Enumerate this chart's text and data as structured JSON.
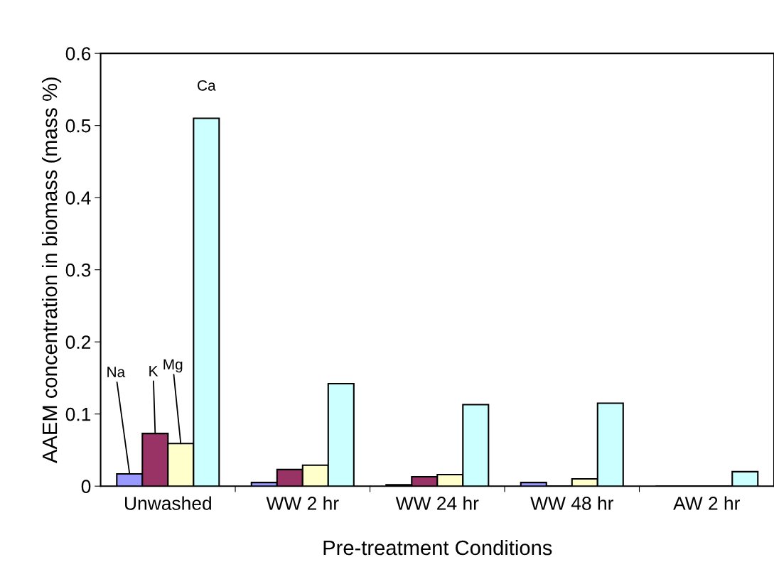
{
  "chart_data": {
    "type": "bar",
    "xlabel": "Pre-treatment Conditions",
    "ylabel": "AAEM concentration in biomass (mass %)",
    "categories": [
      "Unwashed",
      "WW 2 hr",
      "WW 24 hr",
      "WW 48 hr",
      "AW 2 hr"
    ],
    "series": [
      {
        "name": "Na",
        "color": "#9999ff",
        "values": [
          0.017,
          0.005,
          0.002,
          0.005,
          0
        ]
      },
      {
        "name": "K",
        "color": "#993366",
        "values": [
          0.073,
          0.023,
          0.013,
          0,
          0
        ]
      },
      {
        "name": "Mg",
        "color": "#ffffcc",
        "values": [
          0.059,
          0.029,
          0.016,
          0.01,
          0
        ]
      },
      {
        "name": "Ca",
        "color": "#ccffff",
        "values": [
          0.51,
          0.142,
          0.113,
          0.115,
          0.02
        ]
      }
    ],
    "ylim": [
      0,
      0.6
    ],
    "yticks": [
      {
        "value": 0,
        "label": "0"
      },
      0.1,
      0.2,
      0.3,
      0.4,
      0.5,
      0.6
    ],
    "grid": false,
    "legend": false
  }
}
